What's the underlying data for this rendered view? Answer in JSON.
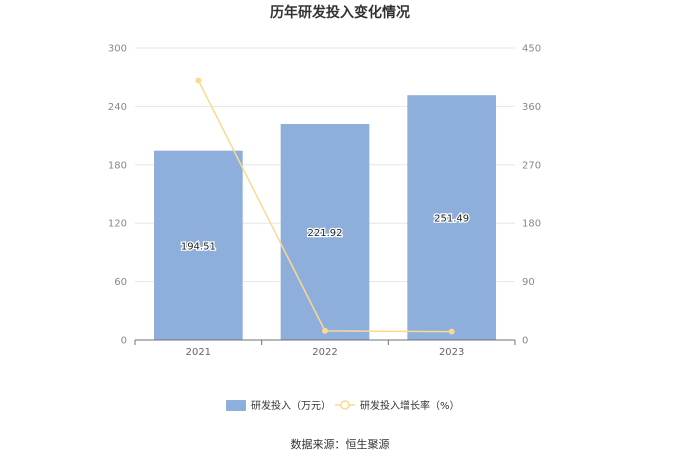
{
  "chart_data": {
    "type": "bar",
    "title": "历年研发投入变化情况",
    "categories": [
      "2021",
      "2022",
      "2023"
    ],
    "series": [
      {
        "name": "研发投入（万元）",
        "type": "bar",
        "axis": "left",
        "color": "#8eaedb",
        "values": [
          194.51,
          221.92,
          251.49
        ]
      },
      {
        "name": "研发投入增长率（%）",
        "type": "line",
        "axis": "right",
        "color": "#fbd98f",
        "values": [
          400,
          14,
          13
        ]
      }
    ],
    "left_axis": {
      "min": 0,
      "max": 300,
      "ticks": [
        "0",
        "60",
        "120",
        "180",
        "240",
        "300"
      ]
    },
    "right_axis": {
      "min": 0,
      "max": 450,
      "ticks": [
        "0",
        "90",
        "180",
        "270",
        "360",
        "450"
      ]
    },
    "grid": true,
    "legend_position": "bottom",
    "source": "数据来源：恒生聚源"
  }
}
